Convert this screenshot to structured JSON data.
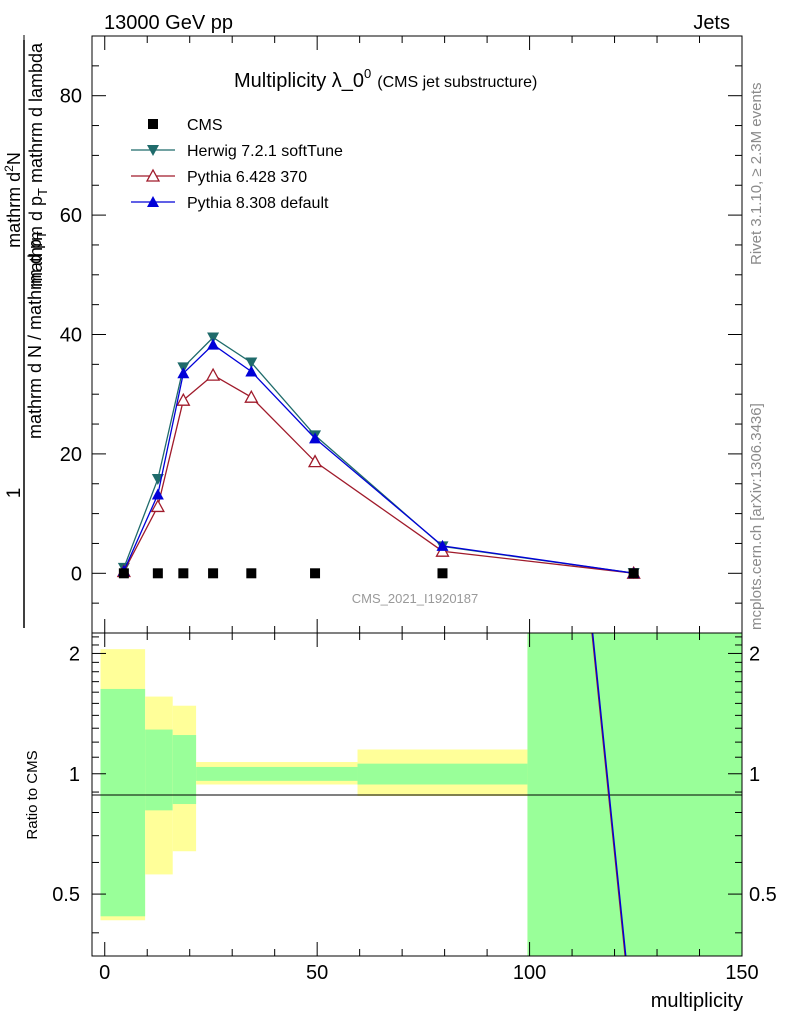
{
  "header": {
    "left": "13000 GeV pp",
    "right": "Jets"
  },
  "side_labels": {
    "rivet": "Rivet 3.1.10, ≥ 2.3M events",
    "mcplots": "mcplots.cern.ch [arXiv:1306.3436]"
  },
  "watermark": "CMS_2021_I1920187",
  "chart_data": [
    {
      "type": "scatter",
      "role": "main",
      "title_main": "Multiplicity λ_0",
      "title_sup": "0",
      "title_sub": "(CMS jet substructure)",
      "ylabel": {
        "frac_one": "1",
        "frac_den": "mathrm d N / mathrm d p",
        "frac_den_sub": "T",
        "num_left": "mathrm d",
        "num_left_sup": "2",
        "num_right": "N",
        "den_a": "mathrm d p",
        "den_a_sub": "T",
        "den_b": " mathrm d lambda"
      },
      "xlim": [
        -3,
        150
      ],
      "ylim": [
        -10,
        90
      ],
      "yticks": [
        0,
        20,
        40,
        60,
        80
      ],
      "x": [
        4.5,
        12.5,
        18.5,
        25.5,
        34.5,
        49.5,
        79.5,
        124.5
      ],
      "series": [
        {
          "name": "CMS",
          "color": "#000000",
          "marker": "square",
          "values": [
            0,
            0,
            0,
            0,
            0,
            0,
            0,
            0
          ]
        },
        {
          "name": "Herwig 7.2.1 softTune",
          "color": "#1f6b6b",
          "marker": "triangle-down",
          "values": [
            0.9,
            15.8,
            34.5,
            39.5,
            35.3,
            23.1,
            4.5,
            0.02
          ]
        },
        {
          "name": "Pythia 6.428 370",
          "color": "#a01b2b",
          "marker": "triangle-up-open",
          "values": [
            0.3,
            11.2,
            29.0,
            33.2,
            29.5,
            18.7,
            3.7,
            0.02
          ]
        },
        {
          "name": "Pythia 8.308 default",
          "color": "#0000d8",
          "marker": "triangle-up",
          "values": [
            0.4,
            13.2,
            33.5,
            38.3,
            33.8,
            22.6,
            4.6,
            0.02
          ]
        }
      ]
    },
    {
      "type": "area",
      "role": "ratio",
      "ylabel": "Ratio to CMS",
      "xlabel": "multiplicity",
      "xlim": [
        -3,
        150
      ],
      "ylim": [
        0.35,
        2.25
      ],
      "ytick_labels": [
        "0.5",
        "1",
        "2"
      ],
      "ytick_values": [
        0.5,
        1,
        2
      ],
      "xtick_labels": [
        "0",
        "50",
        "100",
        "150"
      ],
      "xtick_values": [
        0,
        50,
        100,
        150
      ],
      "bands": [
        {
          "x0": -1,
          "x1": 9.5,
          "yellow": [
            0.43,
            2.05
          ],
          "green": [
            0.44,
            1.63
          ]
        },
        {
          "x0": 9.5,
          "x1": 16,
          "yellow": [
            0.56,
            1.56
          ],
          "green": [
            0.81,
            1.29
          ]
        },
        {
          "x0": 16,
          "x1": 21.5,
          "yellow": [
            0.64,
            1.48
          ],
          "green": [
            0.84,
            1.25
          ]
        },
        {
          "x0": 21.5,
          "x1": 59.5,
          "yellow": [
            0.94,
            1.07
          ],
          "green": [
            0.96,
            1.04
          ]
        },
        {
          "x0": 59.5,
          "x1": 99.5,
          "yellow": [
            0.88,
            1.15
          ],
          "green": [
            0.94,
            1.06
          ]
        },
        {
          "x0": 99.5,
          "x1": 150,
          "yellow": [
            0.35,
            2.25
          ],
          "green": [
            0.35,
            2.25
          ]
        }
      ],
      "ratio_line": {
        "x": [
          114.7,
          122.5
        ],
        "y": [
          2.25,
          0.35
        ],
        "colors": [
          "#a01b2b",
          "#0000d8"
        ]
      }
    }
  ]
}
